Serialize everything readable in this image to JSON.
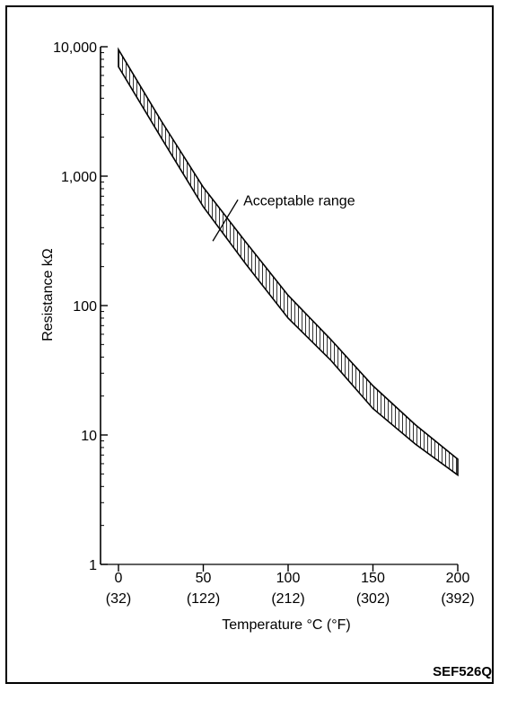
{
  "chart_data": {
    "type": "area",
    "title": "",
    "xlabel": "Temperature °C (°F)",
    "ylabel": "Resistance kΩ",
    "x_scale": "linear",
    "y_scale": "log",
    "xlim": [
      0,
      200
    ],
    "ylim": [
      1,
      10000
    ],
    "grid": false,
    "x_ticks": [
      0,
      50,
      100,
      150,
      200
    ],
    "x_tick_labels_c": [
      "0",
      "50",
      "100",
      "150",
      "200"
    ],
    "x_tick_labels_f": [
      "(32)",
      "(122)",
      "(212)",
      "(302)",
      "(392)"
    ],
    "y_ticks": [
      1,
      10,
      100,
      1000,
      10000
    ],
    "y_tick_labels": [
      "1",
      "10",
      "100",
      "1,000",
      "10,000"
    ],
    "series": [
      {
        "name": "Acceptable range",
        "x": [
          0,
          25,
          50,
          75,
          100,
          125,
          150,
          175,
          200
        ],
        "upper": [
          9500,
          2700,
          820,
          310,
          120,
          55,
          24,
          12,
          6.5
        ],
        "lower": [
          7000,
          2000,
          580,
          210,
          80,
          38,
          16,
          8.5,
          4.9
        ]
      }
    ],
    "annotations": [
      {
        "text": "Acceptable range",
        "x": 63,
        "y": 420
      }
    ]
  },
  "figure_code": "SEF526Q",
  "colors": {
    "line": "#000000",
    "background": "#ffffff"
  }
}
